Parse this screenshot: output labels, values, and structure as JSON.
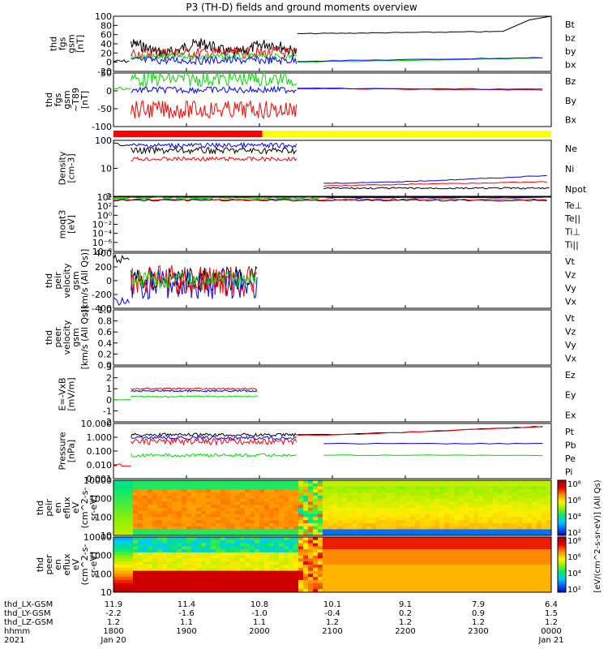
{
  "title": "P3 (TH-D) fields and ground moments overview",
  "colors": {
    "black": "#000000",
    "red": "#ff0000",
    "green": "#00dd00",
    "blue": "#0000ff",
    "yellow": "#ffff00"
  },
  "chart_data": [
    {
      "type": "line",
      "id": "fgs_gsm",
      "ylabel": [
        "thd",
        "fgs",
        "gsm",
        "[nT]"
      ],
      "ylim": [
        -20,
        100
      ],
      "yticks": [
        "100",
        "80",
        "60",
        "40",
        "20",
        "0",
        "-20"
      ],
      "legend": [
        {
          "label": "Bt",
          "color": "#000000"
        },
        {
          "label": "bz",
          "color": "#ff0000"
        },
        {
          "label": "by",
          "color": "#00dd00"
        },
        {
          "label": "bx",
          "color": "#0000ff"
        }
      ]
    },
    {
      "type": "line",
      "id": "fgs_gsm_dist",
      "ylabel": [
        "thd",
        "fgs",
        "gsm",
        "~T89",
        "[nT]"
      ],
      "ylim": [
        -125,
        50
      ],
      "yticks": [
        "50",
        "0",
        "-50",
        "-100"
      ],
      "legend": [
        {
          "label": "Bz",
          "color": "#ff0000"
        },
        {
          "label": "By",
          "color": "#00dd00"
        },
        {
          "label": "Bx",
          "color": "#0000ff"
        }
      ]
    },
    {
      "type": "bar",
      "id": "mode_bar",
      "segments": [
        {
          "from": "1800",
          "to": "2003",
          "color": "#ff0000"
        },
        {
          "from": "2003",
          "to": "0000",
          "color": "#ffff00"
        }
      ]
    },
    {
      "type": "line",
      "id": "density",
      "ylabel": [
        "Density",
        "[cm-3]"
      ],
      "scale": "log",
      "ylim": [
        0.1,
        200
      ],
      "yticks": [
        "100",
        "10",
        "1"
      ],
      "legend": [
        {
          "label": "Ne",
          "color": "#ff0000"
        },
        {
          "label": "Ni",
          "color": "#000000"
        },
        {
          "label": "Npot",
          "color": "#0000ff"
        }
      ]
    },
    {
      "type": "line",
      "id": "temperature",
      "ylabel": [
        "moqt3",
        "[eV]"
      ],
      "scale": "log",
      "yticks": [
        "10⁴",
        "10²",
        "10⁰",
        "10⁻²",
        "10⁻⁴",
        "10⁻⁶",
        "10⁻⁸"
      ],
      "legend": [
        {
          "label": "Te⊥",
          "color": "#ff0000"
        },
        {
          "label": "Te||",
          "color": "#000000"
        },
        {
          "label": "Ti⊥",
          "color": "#0000ff"
        },
        {
          "label": "Ti||",
          "color": "#00dd00"
        }
      ]
    },
    {
      "type": "line",
      "id": "ion_velocity",
      "ylabel": [
        "thd",
        "peir",
        "velocity",
        "gsm",
        "[km/s (All Qs)]"
      ],
      "ylim": [
        -400,
        400
      ],
      "yticks": [
        "400",
        "200",
        "0",
        "-200",
        "-400"
      ],
      "legend": [
        {
          "label": "Vt",
          "color": "#000000"
        },
        {
          "label": "Vz",
          "color": "#ff0000"
        },
        {
          "label": "Vy",
          "color": "#00dd00"
        },
        {
          "label": "Vx",
          "color": "#0000ff"
        }
      ]
    },
    {
      "type": "line",
      "id": "electron_velocity",
      "ylabel": [
        "thd",
        "peer",
        "velocity",
        "gsm",
        "[km/s (All Qs)]"
      ],
      "ylim": [
        0,
        1
      ],
      "yticks": [
        "1.0",
        "0.8",
        "0.6",
        "0.4",
        "0.2",
        "0.0"
      ],
      "legend": [
        {
          "label": "Vt",
          "color": "#000000"
        },
        {
          "label": "Vz",
          "color": "#ff0000"
        },
        {
          "label": "Vy",
          "color": "#00dd00"
        },
        {
          "label": "Vx",
          "color": "#0000ff"
        }
      ]
    },
    {
      "type": "line",
      "id": "efield",
      "ylabel": [
        "E=-VxB",
        "[mV/m]"
      ],
      "ylim": [
        -2,
        3
      ],
      "yticks": [
        "3",
        "2",
        "1",
        "0",
        "-1",
        "-2"
      ],
      "legend": [
        {
          "label": "Ez",
          "color": "#ff0000"
        },
        {
          "label": "Ey",
          "color": "#00dd00"
        },
        {
          "label": "Ex",
          "color": "#0000ff"
        }
      ]
    },
    {
      "type": "line",
      "id": "pressure",
      "ylabel": [
        "Pressure",
        "[nPa]"
      ],
      "scale": "log",
      "ylim": [
        0.001,
        10
      ],
      "yticks": [
        "10.000",
        "1.000",
        "0.100",
        "0.010",
        "0.001"
      ],
      "legend": [
        {
          "label": "Pt",
          "color": "#000000"
        },
        {
          "label": "Pb",
          "color": "#ff0000"
        },
        {
          "label": "Pe",
          "color": "#00dd00"
        },
        {
          "label": "Pi",
          "color": "#0000ff"
        }
      ]
    },
    {
      "type": "heatmap",
      "id": "ion_spec",
      "ylabel": [
        "thd",
        "peir",
        "en",
        "eflux",
        "eV",
        "(cm^2-s-",
        "sr-eV)"
      ],
      "scale": "log",
      "yticks": [
        "10000",
        "1000",
        "100",
        "10"
      ]
    },
    {
      "type": "heatmap",
      "id": "elec_spec",
      "ylabel": [
        "thd",
        "peer",
        "en",
        "eflux",
        "eV",
        "(cm^2-s-",
        "sr-eV)"
      ],
      "scale": "log",
      "yticks": [
        "10000",
        "1000",
        "100",
        "10"
      ]
    }
  ],
  "colorbar": {
    "label": "[eV/(cm^2-s-sr-eV)] (All Qs)",
    "upper_ticks": [
      "10⁸",
      "10⁶",
      "10⁴",
      "10²"
    ],
    "lower_ticks": [
      "10⁸",
      "10⁶",
      "10⁴",
      "10²"
    ]
  },
  "x_axis": {
    "row_labels": [
      "thd_LX-GSM",
      "thd_LY-GSM",
      "thd_LZ-GSM",
      "hhmm",
      "2021"
    ],
    "columns": [
      {
        "vals": [
          "11.9",
          "-2.2",
          "1.2",
          "1800",
          "Jan 20"
        ]
      },
      {
        "vals": [
          "11.4",
          "-1.6",
          "1.1",
          "1900",
          ""
        ]
      },
      {
        "vals": [
          "10.8",
          "-1.0",
          "1.1",
          "2000",
          ""
        ]
      },
      {
        "vals": [
          "10.1",
          "-0.4",
          "1.2",
          "2100",
          ""
        ]
      },
      {
        "vals": [
          "9.1",
          "0.2",
          "1.2",
          "2200",
          ""
        ]
      },
      {
        "vals": [
          "7.9",
          "0.9",
          "1.2",
          "2300",
          ""
        ]
      },
      {
        "vals": [
          "6.4",
          "1.5",
          "1.2",
          "0000",
          "Jan 21"
        ]
      }
    ]
  }
}
